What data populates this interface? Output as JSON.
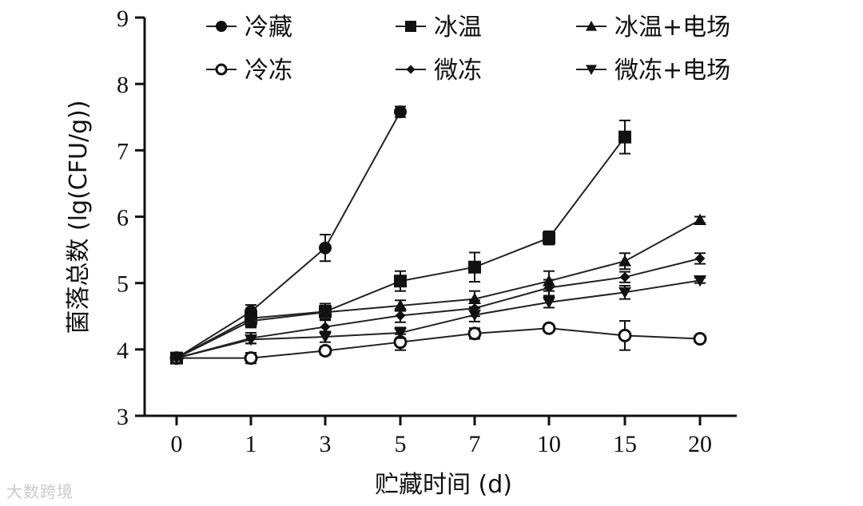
{
  "chart_data": {
    "type": "line",
    "xlabel": "贮藏时间 (d)",
    "ylabel": "菌落总数 (lg(CFU/g))",
    "categories": [
      "0",
      "1",
      "3",
      "5",
      "7",
      "10",
      "15",
      "20"
    ],
    "ylim": [
      3,
      9
    ],
    "yticks": [
      "3",
      "4",
      "5",
      "6",
      "7",
      "8",
      "9"
    ],
    "grid": false,
    "legend_position": "top",
    "series": [
      {
        "name": "冷藏",
        "marker": "circle-filled",
        "values": [
          3.87,
          4.57,
          5.53,
          7.58,
          null,
          null,
          null,
          null
        ],
        "errors": [
          0.03,
          0.1,
          0.2,
          0.08,
          null,
          null,
          null,
          null
        ]
      },
      {
        "name": "冰温",
        "marker": "square",
        "values": [
          3.87,
          4.47,
          4.57,
          5.03,
          5.24,
          5.68,
          7.2,
          null
        ],
        "errors": [
          0.03,
          0.12,
          0.12,
          0.15,
          0.22,
          0.1,
          0.25,
          null
        ]
      },
      {
        "name": "冰温+电场",
        "marker": "triangle-up",
        "values": [
          3.87,
          4.43,
          4.56,
          4.66,
          4.76,
          5.03,
          5.33,
          5.95
        ],
        "errors": [
          0.03,
          0.1,
          0.1,
          0.08,
          0.12,
          0.15,
          0.12,
          0.05
        ]
      },
      {
        "name": "冷冻",
        "marker": "circle-open",
        "values": [
          3.87,
          3.87,
          3.98,
          4.11,
          4.24,
          4.32,
          4.21,
          4.16
        ],
        "errors": [
          0.03,
          0.08,
          0.06,
          0.12,
          0.08,
          0.04,
          0.22,
          0.04
        ]
      },
      {
        "name": "微冻",
        "marker": "diamond",
        "values": [
          3.87,
          4.17,
          4.34,
          4.51,
          4.62,
          4.93,
          5.09,
          5.37
        ],
        "errors": [
          0.03,
          0.08,
          0.1,
          0.1,
          0.12,
          0.12,
          0.08,
          0.08
        ]
      },
      {
        "name": "微冻+电场",
        "marker": "triangle-down",
        "values": [
          3.87,
          4.15,
          4.19,
          4.25,
          4.52,
          4.71,
          4.86,
          5.04
        ],
        "errors": [
          0.03,
          0.06,
          0.08,
          0.08,
          0.1,
          0.08,
          0.1,
          0.04
        ]
      }
    ]
  },
  "watermark": "大数跨境"
}
